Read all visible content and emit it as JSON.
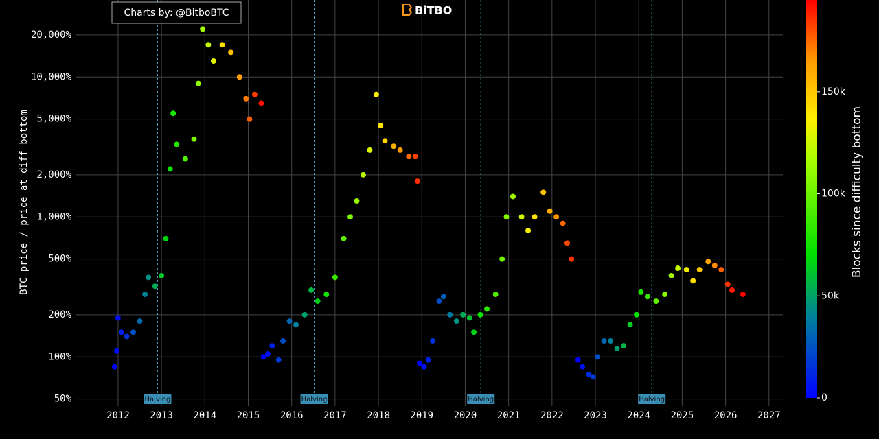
{
  "chart_data": {
    "type": "scatter",
    "credit": "Charts by: @BitboBTC",
    "brand": "BiTBO",
    "y_label": "BTC price / price at diff bottom",
    "colorbar_title": "Blocks since difficulty bottom",
    "ylog": true,
    "grid": true,
    "xlim": [
      2011.02,
      2027.32
    ],
    "ylim": [
      44.5,
      35500
    ],
    "xticks": [
      2012,
      2013,
      2014,
      2015,
      2016,
      2017,
      2018,
      2019,
      2020,
      2021,
      2022,
      2023,
      2024,
      2025,
      2026,
      2027
    ],
    "yticks": [
      {
        "value": 50,
        "label": "50%"
      },
      {
        "value": 100,
        "label": "100%"
      },
      {
        "value": 200,
        "label": "200%"
      },
      {
        "value": 500,
        "label": "500%"
      },
      {
        "value": 1000,
        "label": "1,000%"
      },
      {
        "value": 2000,
        "label": "2,000%"
      },
      {
        "value": 5000,
        "label": "5,000%"
      },
      {
        "value": 10000,
        "label": "10,000%"
      },
      {
        "value": 20000,
        "label": "20,000%"
      }
    ],
    "clim": [
      0,
      195000
    ],
    "cticks": [
      0,
      {
        "value": 50000,
        "label": "50k"
      },
      {
        "value": 100000,
        "label": "100k"
      },
      {
        "value": 150000,
        "label": "150k"
      }
    ],
    "colorscale": [
      [
        0,
        "#0000ff"
      ],
      [
        0.2,
        "#007f9f"
      ],
      [
        0.36,
        "#00e000"
      ],
      [
        0.6,
        "#aaff00"
      ],
      [
        0.7,
        "#ffee00"
      ],
      [
        0.85,
        "#ff9900"
      ],
      [
        1,
        "#ff0000"
      ]
    ],
    "annotations": [
      {
        "x": 2012.91,
        "text": "Halving"
      },
      {
        "x": 2016.52,
        "text": "Halving"
      },
      {
        "x": 2020.36,
        "text": "Halving"
      },
      {
        "x": 2024.3,
        "text": "Halving"
      }
    ],
    "x": [
      2011.92,
      2011.97,
      2012.0,
      2012.08,
      2012.2,
      2012.35,
      2012.5,
      2012.62,
      2012.7,
      2012.85,
      2013.0,
      2013.1,
      2013.2,
      2013.27,
      2013.35,
      2013.55,
      2013.75,
      2013.85,
      2013.95,
      2014.08,
      2014.2,
      2014.4,
      2014.6,
      2014.8,
      2014.95,
      2015.03,
      2015.15,
      2015.3,
      2015.35,
      2015.45,
      2015.55,
      2015.7,
      2015.8,
      2015.95,
      2016.1,
      2016.3,
      2016.45,
      2016.6,
      2016.8,
      2017.0,
      2017.2,
      2017.35,
      2017.5,
      2017.65,
      2017.8,
      2017.95,
      2018.05,
      2018.15,
      2018.35,
      2018.5,
      2018.7,
      2018.85,
      2018.9,
      2018.95,
      2019.05,
      2019.15,
      2019.25,
      2019.4,
      2019.5,
      2019.65,
      2019.8,
      2019.95,
      2020.1,
      2020.2,
      2020.35,
      2020.5,
      2020.7,
      2020.85,
      2020.95,
      2021.1,
      2021.3,
      2021.45,
      2021.6,
      2021.8,
      2021.95,
      2022.1,
      2022.25,
      2022.35,
      2022.45,
      2022.6,
      2022.7,
      2022.85,
      2022.95,
      2023.05,
      2023.2,
      2023.35,
      2023.5,
      2023.65,
      2023.8,
      2023.95,
      2024.05,
      2024.2,
      2024.4,
      2024.6,
      2024.75,
      2024.9,
      2025.1,
      2025.25,
      2025.4,
      2025.6,
      2025.75,
      2025.9,
      2026.05,
      2026.15,
      2026.4
    ],
    "values": [
      85,
      110,
      190,
      150,
      140,
      150,
      180,
      280,
      370,
      320,
      380,
      700,
      2200,
      5500,
      3300,
      2600,
      3600,
      9000,
      22000,
      17000,
      13000,
      17000,
      15000,
      10000,
      7000,
      5000,
      7500,
      6500,
      100,
      105,
      120,
      95,
      130,
      180,
      170,
      200,
      300,
      250,
      280,
      370,
      700,
      1000,
      1300,
      2000,
      3000,
      7500,
      4500,
      3500,
      3200,
      3000,
      2700,
      2700,
      1800,
      90,
      85,
      95,
      130,
      250,
      270,
      200,
      180,
      200,
      190,
      150,
      200,
      220,
      280,
      500,
      1000,
      1400,
      1000,
      800,
      1000,
      1500,
      1100,
      1000,
      900,
      650,
      500,
      95,
      85,
      75,
      72,
      100,
      130,
      130,
      115,
      120,
      170,
      200,
      290,
      270,
      250,
      280,
      380,
      430,
      420,
      350,
      420,
      480,
      450,
      420,
      330,
      300,
      280
    ],
    "color_values": [
      0,
      3000,
      5000,
      9000,
      16000,
      25000,
      33000,
      40000,
      44000,
      53000,
      62000,
      67000,
      73000,
      77000,
      81000,
      93000,
      104000,
      110000,
      116000,
      123000,
      130000,
      141000,
      153000,
      164000,
      172000,
      177000,
      184000,
      192000,
      0,
      5000,
      10000,
      18000,
      23000,
      31000,
      39000,
      49000,
      57000,
      65000,
      75000,
      86000,
      96000,
      104000,
      112000,
      120000,
      128000,
      136000,
      141000,
      146000,
      157000,
      165000,
      175000,
      183000,
      186000,
      0,
      5000,
      10000,
      16000,
      24000,
      29000,
      37000,
      45000,
      53000,
      61000,
      66000,
      74000,
      82000,
      93000,
      101000,
      106000,
      114000,
      125000,
      133000,
      141000,
      151000,
      159000,
      167000,
      175000,
      181000,
      186000,
      0,
      5000,
      13000,
      18000,
      24000,
      32000,
      40000,
      48000,
      56000,
      64000,
      72000,
      78000,
      86000,
      96000,
      107000,
      115000,
      123000,
      134000,
      142000,
      150000,
      161000,
      169000,
      177000,
      185000,
      190000,
      194000
    ]
  }
}
